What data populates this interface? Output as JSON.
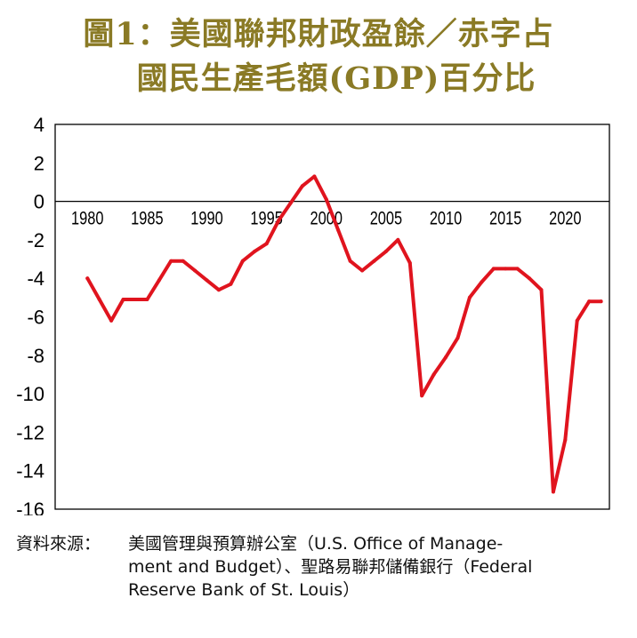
{
  "title": {
    "line1": "圖1：美國聯邦財政盈餘／赤字占",
    "line2": "國民生產毛額(GDP)百分比"
  },
  "source": {
    "label": "資料來源：",
    "line1": "美國管理與預算辦公室（U.S. Office of Manage-",
    "line2": "ment and Budget）、聖路易聯邦儲備銀行（Federal",
    "line3": "Reserve Bank of St. Louis）"
  },
  "colors": {
    "line": "#e0141e",
    "title": "#8a7a25",
    "axis": "#000000"
  },
  "chart_data": {
    "type": "line",
    "title": "",
    "xlabel": "",
    "ylabel": "",
    "xlim": [
      1977.3,
      2023.7
    ],
    "ylim": [
      -16,
      4
    ],
    "yticks": [
      4,
      2,
      0,
      -2,
      -4,
      -6,
      -8,
      -10,
      -12,
      -14,
      -16
    ],
    "ytick_labels": [
      "4",
      "2",
      "0",
      "-2",
      "-4",
      "-6",
      "-8",
      "-10",
      "-12",
      "-14",
      "-16"
    ],
    "xticks": [
      1980,
      1985,
      1990,
      1995,
      2000,
      2005,
      2010,
      2015,
      2020
    ],
    "xtick_labels": [
      "1980",
      "1985",
      "1990",
      "1995",
      "2000",
      "2005",
      "2010",
      "2015",
      "2020"
    ],
    "grid": false,
    "series": [
      {
        "name": "Federal surplus/deficit as % of GDP",
        "x": [
          1980,
          1981,
          1982,
          1983,
          1984,
          1985,
          1986,
          1987,
          1988,
          1989,
          1990,
          1991,
          1992,
          1993,
          1994,
          1995,
          1996,
          1997,
          1998,
          1999,
          2000,
          2001,
          2002,
          2003,
          2004,
          2005,
          2006,
          2007,
          2008,
          2009,
          2010,
          2011,
          2012,
          2013,
          2014,
          2015,
          2016,
          2017,
          2018,
          2019,
          2020,
          2021,
          2022,
          2023
        ],
        "values": [
          -4.0,
          -5.1,
          -6.2,
          -5.1,
          -5.1,
          -5.1,
          -4.1,
          -3.1,
          -3.1,
          -3.6,
          -4.1,
          -4.6,
          -4.3,
          -3.1,
          -2.6,
          -2.2,
          -1.0,
          -0.1,
          0.8,
          1.3,
          0.1,
          -1.5,
          -3.1,
          -3.6,
          -3.1,
          -2.6,
          -2.0,
          -3.2,
          -10.1,
          -9.0,
          -8.1,
          -7.1,
          -5.0,
          -4.2,
          -3.5,
          -3.5,
          -3.5,
          -4.0,
          -4.6,
          -15.1,
          -12.4,
          -6.2,
          -5.2,
          -5.2
        ]
      }
    ]
  }
}
